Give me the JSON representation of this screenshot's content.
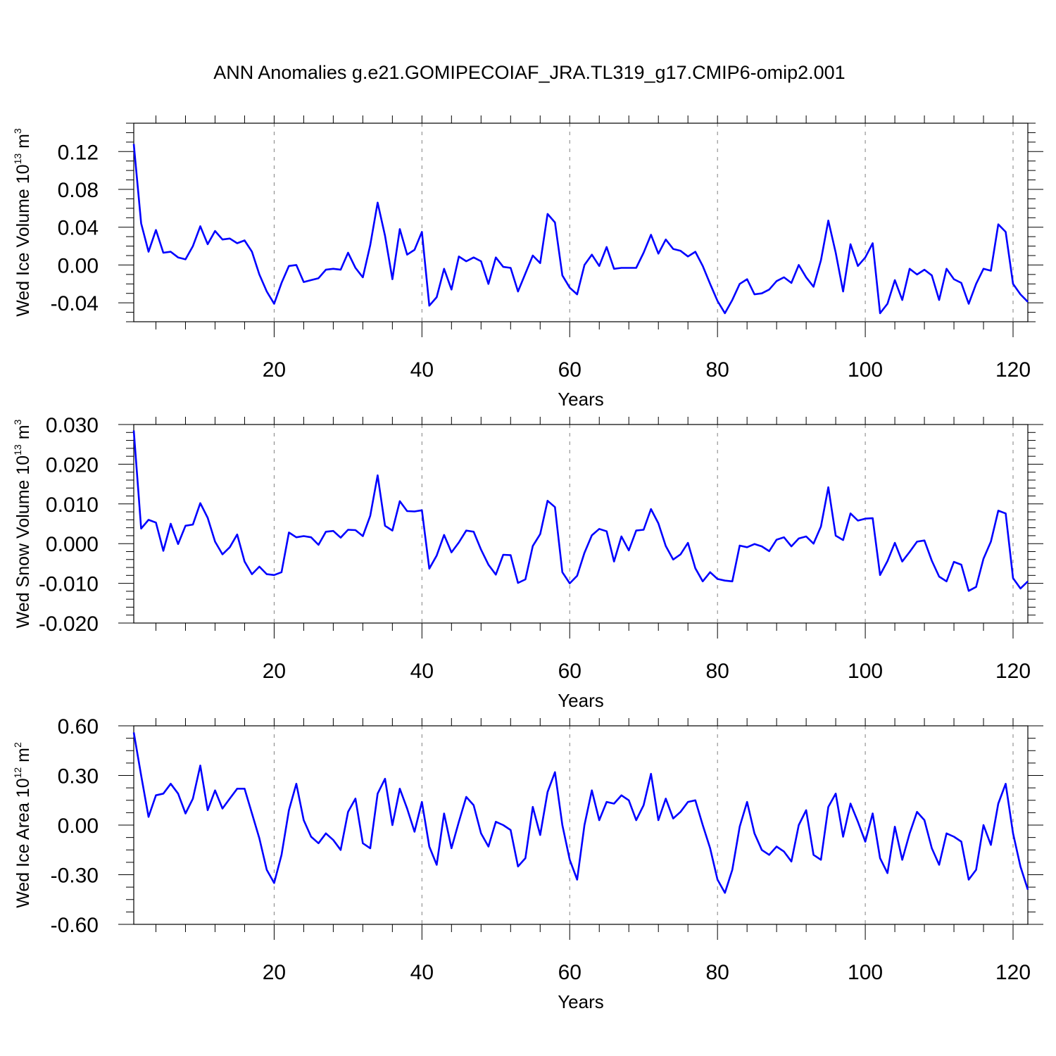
{
  "title": "ANN Anomalies g.e21.GOMIPECOIAF_JRA.TL319_g17.CMIP6-omip2.001",
  "colors": {
    "line": "#0000ff",
    "axis": "#000000",
    "refline": "#808080"
  },
  "chart_data": [
    {
      "type": "line",
      "ylabel": {
        "text": "Wed Ice Volume 10",
        "exp": "13",
        "unit": " m",
        "unit_exp": "3"
      },
      "xlabel": "Years",
      "xlim": [
        1,
        122
      ],
      "ylim": [
        -0.06,
        0.15
      ],
      "yticks": [
        -0.04,
        0.0,
        0.04,
        0.08,
        0.12
      ],
      "ytick_labels": [
        "-0.04",
        "0.00",
        "0.04",
        "0.08",
        "0.12"
      ],
      "yminor_step": 0.01,
      "xticks": [
        20,
        40,
        60,
        80,
        100,
        120
      ],
      "xtick_labels": [
        "20",
        "40",
        "60",
        "80",
        "100",
        "120"
      ],
      "xminor_step": 4,
      "vlines": [
        20,
        40,
        60,
        80,
        100,
        120
      ],
      "values": [
        0.128,
        0.044,
        0.014,
        0.037,
        0.013,
        0.014,
        0.008,
        0.006,
        0.02,
        0.041,
        0.022,
        0.036,
        0.027,
        0.028,
        0.023,
        0.026,
        0.014,
        -0.01,
        -0.028,
        -0.041,
        -0.019,
        -0.001,
        0.0,
        -0.018,
        -0.016,
        -0.014,
        -0.005,
        -0.004,
        -0.005,
        0.013,
        -0.003,
        -0.013,
        0.021,
        0.066,
        0.031,
        -0.015,
        0.038,
        0.011,
        0.016,
        0.035,
        -0.043,
        -0.034,
        -0.004,
        -0.026,
        0.009,
        0.004,
        0.008,
        0.004,
        -0.02,
        0.008,
        -0.002,
        -0.003,
        -0.028,
        -0.009,
        0.01,
        0.002,
        0.054,
        0.045,
        -0.011,
        -0.024,
        -0.031,
        0.0,
        0.011,
        -0.001,
        0.019,
        -0.004,
        -0.003,
        -0.003,
        -0.003,
        0.013,
        0.032,
        0.012,
        0.027,
        0.017,
        0.015,
        0.009,
        0.014,
        -0.001,
        -0.02,
        -0.038,
        -0.051,
        -0.037,
        -0.02,
        -0.015,
        -0.031,
        -0.03,
        -0.026,
        -0.017,
        -0.013,
        -0.019,
        0.0,
        -0.013,
        -0.023,
        0.005,
        0.047,
        0.013,
        -0.028,
        0.022,
        -0.001,
        0.008,
        0.023,
        -0.051,
        -0.041,
        -0.016,
        -0.037,
        -0.004,
        -0.01,
        -0.005,
        -0.011,
        -0.037,
        -0.004,
        -0.015,
        -0.019,
        -0.041,
        -0.02,
        -0.004,
        -0.006,
        0.043,
        0.035,
        -0.02,
        -0.031,
        -0.039
      ]
    },
    {
      "type": "line",
      "ylabel": {
        "text": "Wed Snow Volume 10",
        "exp": "13",
        "unit": " m",
        "unit_exp": "3"
      },
      "xlabel": "Years",
      "xlim": [
        1,
        122
      ],
      "ylim": [
        -0.02,
        0.03
      ],
      "yticks": [
        -0.02,
        -0.01,
        0.0,
        0.01,
        0.02,
        0.03
      ],
      "ytick_labels": [
        "-0.020",
        "-0.010",
        "0.000",
        "0.010",
        "0.020",
        "0.030"
      ],
      "yminor_step": 0.002,
      "xticks": [
        20,
        40,
        60,
        80,
        100,
        120
      ],
      "xtick_labels": [
        "20",
        "40",
        "60",
        "80",
        "100",
        "120"
      ],
      "xminor_step": 4,
      "vlines": [
        20,
        40,
        60,
        80,
        100,
        120
      ],
      "values": [
        0.0285,
        0.0038,
        0.006,
        0.0053,
        -0.0018,
        0.005,
        -0.0001,
        0.0045,
        0.0048,
        0.0102,
        0.0065,
        0.0005,
        -0.0027,
        -0.0009,
        0.0023,
        -0.0045,
        -0.0077,
        -0.0058,
        -0.0077,
        -0.0079,
        -0.0072,
        0.0028,
        0.0016,
        0.0019,
        0.0016,
        -0.0003,
        0.003,
        0.0032,
        0.0015,
        0.0035,
        0.0034,
        0.0019,
        0.007,
        0.0172,
        0.0045,
        0.0033,
        0.0107,
        0.0082,
        0.0081,
        0.0084,
        -0.0063,
        -0.003,
        0.0022,
        -0.0022,
        0.0003,
        0.0033,
        0.003,
        -0.0015,
        -0.0053,
        -0.0078,
        -0.0028,
        -0.0029,
        -0.0099,
        -0.009,
        -0.0006,
        0.0024,
        0.0108,
        0.0092,
        -0.0072,
        -0.01,
        -0.0081,
        -0.0023,
        0.0021,
        0.0037,
        0.0031,
        -0.0045,
        0.0018,
        -0.0017,
        0.0033,
        0.0035,
        0.0087,
        0.0051,
        -0.0006,
        -0.004,
        -0.0027,
        0.0002,
        -0.0062,
        -0.0095,
        -0.0072,
        -0.0089,
        -0.0093,
        -0.0095,
        -0.0005,
        -0.0009,
        -0.0001,
        -0.0007,
        -0.0019,
        0.001,
        0.0016,
        -0.0007,
        0.0013,
        0.0018,
        0.0,
        0.0043,
        0.0142,
        0.002,
        0.0009,
        0.0076,
        0.0058,
        0.0063,
        0.0064,
        -0.0079,
        -0.0044,
        0.0002,
        -0.0045,
        -0.0021,
        0.0005,
        0.0008,
        -0.0043,
        -0.0083,
        -0.0095,
        -0.0046,
        -0.0053,
        -0.0119,
        -0.0109,
        -0.0038,
        0.0005,
        0.0083,
        0.0076,
        -0.0087,
        -0.0113,
        -0.0095
      ]
    },
    {
      "type": "line",
      "ylabel": {
        "text": "Wed Ice Area 10",
        "exp": "12",
        "unit": " m",
        "unit_exp": "2"
      },
      "xlabel": "Years",
      "xlim": [
        1,
        122
      ],
      "ylim": [
        -0.6,
        0.6
      ],
      "yticks": [
        -0.6,
        -0.3,
        0.0,
        0.3,
        0.6
      ],
      "ytick_labels": [
        "-0.60",
        "-0.30",
        "0.00",
        "0.30",
        "0.60"
      ],
      "yminor_step": 0.075,
      "xticks": [
        20,
        40,
        60,
        80,
        100,
        120
      ],
      "xtick_labels": [
        "20",
        "40",
        "60",
        "80",
        "100",
        "120"
      ],
      "xminor_step": 4,
      "vlines": [
        20,
        40,
        60,
        80,
        100,
        120
      ],
      "values": [
        0.56,
        0.3,
        0.05,
        0.18,
        0.19,
        0.25,
        0.19,
        0.07,
        0.16,
        0.36,
        0.09,
        0.21,
        0.1,
        0.16,
        0.22,
        0.22,
        0.07,
        -0.08,
        -0.27,
        -0.35,
        -0.18,
        0.09,
        0.25,
        0.03,
        -0.07,
        -0.11,
        -0.05,
        -0.09,
        -0.15,
        0.08,
        0.16,
        -0.11,
        -0.14,
        0.19,
        0.28,
        0.0,
        0.22,
        0.1,
        -0.04,
        0.14,
        -0.13,
        -0.24,
        0.07,
        -0.14,
        0.02,
        0.17,
        0.12,
        -0.05,
        -0.13,
        0.02,
        0.0,
        -0.03,
        -0.25,
        -0.2,
        0.11,
        -0.06,
        0.2,
        0.32,
        0.0,
        -0.21,
        -0.33,
        0.0,
        0.21,
        0.03,
        0.14,
        0.13,
        0.18,
        0.15,
        0.03,
        0.12,
        0.31,
        0.03,
        0.16,
        0.04,
        0.08,
        0.14,
        0.15,
        0.0,
        -0.14,
        -0.33,
        -0.41,
        -0.27,
        -0.01,
        0.14,
        -0.05,
        -0.15,
        -0.18,
        -0.13,
        -0.16,
        -0.22,
        0.0,
        0.09,
        -0.18,
        -0.21,
        0.11,
        0.19,
        -0.07,
        0.13,
        0.02,
        -0.1,
        0.07,
        -0.2,
        -0.29,
        -0.01,
        -0.21,
        -0.05,
        0.08,
        0.03,
        -0.14,
        -0.24,
        -0.05,
        -0.07,
        -0.1,
        -0.33,
        -0.27,
        0.0,
        -0.12,
        0.13,
        0.25,
        -0.05,
        -0.25,
        -0.39
      ]
    }
  ]
}
